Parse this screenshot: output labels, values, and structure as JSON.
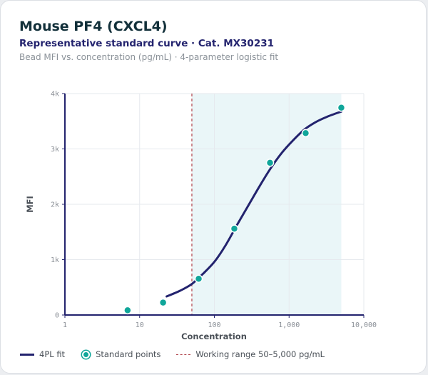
{
  "header": {
    "title": "Mouse PF4 (CXCL4)",
    "subtitle": "Representative standard curve · Cat. MX30231",
    "caption": "Bead MFI vs. concentration (pg/mL) · 4-parameter logistic fit"
  },
  "chart_data": {
    "type": "scatter",
    "xlabel": "Concentration",
    "ylabel": "MFI",
    "x_scale": "log",
    "xlim": [
      1,
      10000
    ],
    "ylim": [
      0,
      4000
    ],
    "x_ticks": [
      1,
      10,
      100,
      1000,
      10000
    ],
    "x_tick_labels": [
      "1",
      "10",
      "100",
      "1,000",
      "10,000"
    ],
    "y_ticks": [
      0,
      1000,
      2000,
      3000,
      4000
    ],
    "y_tick_labels": [
      "0",
      "1k",
      "2k",
      "3k",
      "4k"
    ],
    "grid": true,
    "series": [
      {
        "name": "Standard points",
        "kind": "points",
        "color": "#10a69a",
        "x": [
          6.9,
          20.6,
          61.7,
          185,
          556,
          1667,
          5000
        ],
        "y": [
          85,
          225,
          655,
          1560,
          2750,
          3285,
          3745
        ]
      },
      {
        "name": "4PL fit",
        "kind": "line",
        "color": "#23236e",
        "x": [
          23,
          35,
          50,
          70,
          100,
          140,
          200,
          280,
          400,
          560,
          800,
          1120,
          1600,
          2240,
          3200,
          5000
        ],
        "y": [
          335,
          440,
          560,
          740,
          960,
          1250,
          1620,
          1960,
          2320,
          2640,
          2930,
          3150,
          3350,
          3480,
          3580,
          3675
        ]
      }
    ],
    "working_range": {
      "label": "Working range 50–5,000 pg/mL",
      "x": [
        50,
        5000
      ],
      "color": "#b0424a",
      "shade": "#eaf6f8"
    },
    "legend": {
      "placement": "bottom-left",
      "items": [
        {
          "label": "4PL fit",
          "swatch": "line"
        },
        {
          "label": "Standard points",
          "swatch": "dot"
        },
        {
          "label": "Working range 50–5,000 pg/mL",
          "swatch": "dash"
        }
      ]
    }
  }
}
